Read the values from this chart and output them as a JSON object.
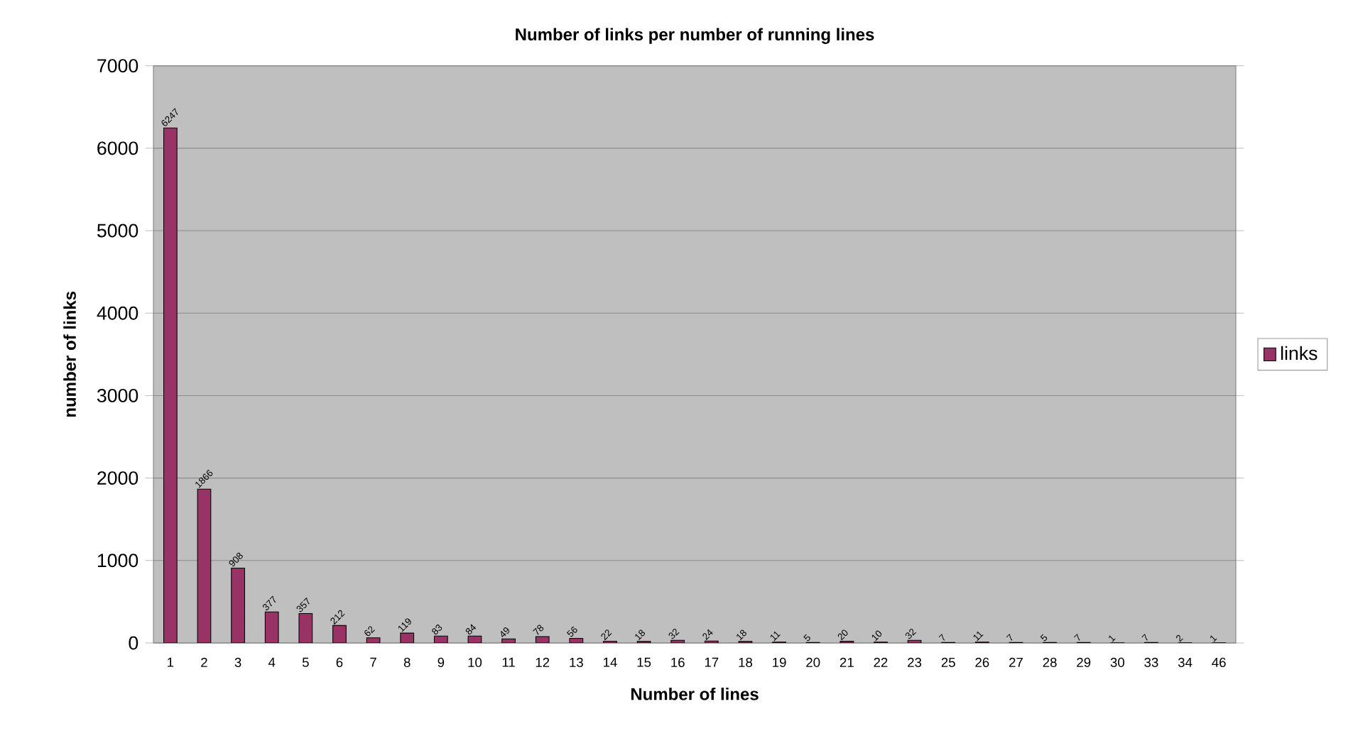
{
  "chart_data": {
    "type": "bar",
    "title": "Number of links per number of running lines",
    "xlabel": "Number of lines",
    "ylabel": "number of links",
    "categories": [
      "1",
      "2",
      "3",
      "4",
      "5",
      "6",
      "7",
      "8",
      "9",
      "10",
      "11",
      "12",
      "13",
      "14",
      "15",
      "16",
      "17",
      "18",
      "19",
      "20",
      "21",
      "22",
      "23",
      "25",
      "26",
      "27",
      "28",
      "29",
      "30",
      "33",
      "34",
      "46"
    ],
    "series": [
      {
        "name": "links",
        "color": "#993366",
        "values": [
          6247,
          1866,
          908,
          377,
          357,
          212,
          62,
          119,
          83,
          84,
          49,
          78,
          56,
          22,
          18,
          32,
          24,
          18,
          11,
          5,
          20,
          10,
          32,
          7,
          11,
          7,
          5,
          7,
          1,
          7,
          2,
          1
        ]
      }
    ],
    "ylim": [
      0,
      7000
    ],
    "yticks": [
      0,
      1000,
      2000,
      3000,
      4000,
      5000,
      6000,
      7000
    ],
    "grid": "y",
    "legend": "right",
    "data_labels": true
  }
}
